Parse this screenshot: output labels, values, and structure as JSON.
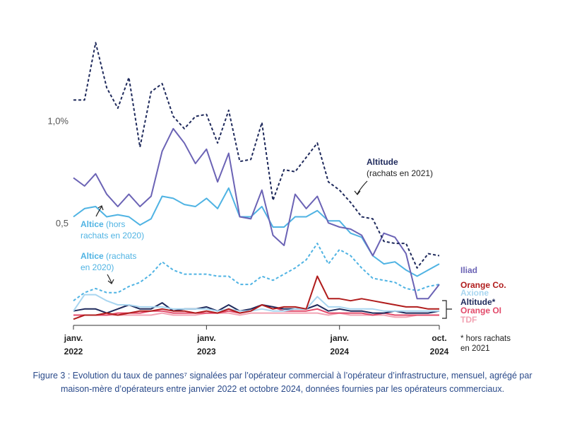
{
  "caption": "Figure 3 : Evolution du taux de pannes⁷ signalées par l’opérateur commercial à l’opérateur d’infrastructure, mensuel, agrégé par maison-mère d’opérateurs entre janvier 2022 et octobre 2024, données fournies par les opérateurs commerciaux.",
  "chart_data": {
    "type": "line",
    "x_start": "2022-01",
    "x_end": "2024-10",
    "x_ticks": [
      {
        "month": "2022-01",
        "line1": "janv.",
        "line2": "2022"
      },
      {
        "month": "2023-01",
        "line1": "janv.",
        "line2": "2023"
      },
      {
        "month": "2024-01",
        "line1": "janv.",
        "line2": "2024"
      },
      {
        "month": "2024-10",
        "line1": "oct.",
        "line2": "2024"
      }
    ],
    "y_ticks": [
      {
        "value": 1.0,
        "label": "1,0%"
      },
      {
        "value": 0.5,
        "label": "0,5"
      }
    ],
    "ylim": [
      0,
      1.45
    ],
    "series": [
      {
        "name": "Altitude (rachats en 2021)",
        "color": "#1f2a5c",
        "dash": true,
        "values": [
          1.1,
          1.1,
          1.38,
          1.16,
          1.06,
          1.21,
          0.87,
          1.14,
          1.18,
          1.02,
          0.96,
          1.02,
          1.03,
          0.89,
          1.05,
          0.8,
          0.81,
          0.99,
          0.61,
          0.76,
          0.75,
          0.82,
          0.89,
          0.7,
          0.66,
          0.6,
          0.53,
          0.52,
          0.41,
          0.4,
          0.4,
          0.28,
          0.35,
          0.34
        ]
      },
      {
        "name": "Iliad",
        "color": "#6b63b5",
        "dash": false,
        "values": [
          0.72,
          0.68,
          0.74,
          0.64,
          0.58,
          0.64,
          0.58,
          0.63,
          0.85,
          0.96,
          0.89,
          0.79,
          0.86,
          0.7,
          0.84,
          0.53,
          0.52,
          0.66,
          0.44,
          0.39,
          0.64,
          0.57,
          0.63,
          0.5,
          0.48,
          0.47,
          0.44,
          0.34,
          0.45,
          0.43,
          0.35,
          0.13,
          0.13,
          0.2
        ]
      },
      {
        "name": "Altice (hors rachats en 2020)",
        "color": "#4fb3e3",
        "dash": false,
        "values": [
          0.53,
          0.57,
          0.58,
          0.53,
          0.54,
          0.53,
          0.49,
          0.52,
          0.63,
          0.62,
          0.59,
          0.58,
          0.62,
          0.57,
          0.67,
          0.53,
          0.53,
          0.58,
          0.48,
          0.48,
          0.53,
          0.53,
          0.56,
          0.51,
          0.51,
          0.45,
          0.43,
          0.34,
          0.3,
          0.31,
          0.27,
          0.24,
          0.27,
          0.3
        ]
      },
      {
        "name": "Altice (rachats en 2020)",
        "color": "#4fb3e3",
        "dash": true,
        "values": [
          0.12,
          0.16,
          0.18,
          0.16,
          0.16,
          0.19,
          0.21,
          0.25,
          0.31,
          0.27,
          0.25,
          0.25,
          0.25,
          0.24,
          0.24,
          0.2,
          0.2,
          0.24,
          0.22,
          0.25,
          0.28,
          0.32,
          0.4,
          0.3,
          0.37,
          0.34,
          0.28,
          0.23,
          0.22,
          0.21,
          0.18,
          0.17,
          0.19,
          0.2
        ]
      },
      {
        "name": "Orange Co.",
        "color": "#b01c1c",
        "dash": false,
        "values": [
          0.03,
          0.05,
          0.05,
          0.06,
          0.05,
          0.06,
          0.07,
          0.07,
          0.08,
          0.07,
          0.07,
          0.06,
          0.07,
          0.06,
          0.08,
          0.06,
          0.07,
          0.1,
          0.08,
          0.09,
          0.09,
          0.08,
          0.24,
          0.13,
          0.13,
          0.12,
          0.13,
          0.12,
          0.11,
          0.1,
          0.09,
          0.09,
          0.08,
          0.08
        ]
      },
      {
        "name": "Axione",
        "color": "#a9d6f0",
        "dash": false,
        "values": [
          0.07,
          0.15,
          0.15,
          0.12,
          0.1,
          0.1,
          0.09,
          0.09,
          0.09,
          0.08,
          0.08,
          0.08,
          0.08,
          0.07,
          0.08,
          0.07,
          0.07,
          0.08,
          0.07,
          0.07,
          0.08,
          0.08,
          0.14,
          0.09,
          0.09,
          0.08,
          0.08,
          0.08,
          0.07,
          0.07,
          0.07,
          0.07,
          0.07,
          0.07
        ]
      },
      {
        "name": "Altitude*",
        "color": "#1f2a5c",
        "dash": false,
        "values": [
          0.07,
          0.08,
          0.08,
          0.06,
          0.08,
          0.1,
          0.08,
          0.08,
          0.11,
          0.07,
          0.08,
          0.08,
          0.09,
          0.07,
          0.1,
          0.07,
          0.08,
          0.1,
          0.09,
          0.08,
          0.08,
          0.08,
          0.1,
          0.07,
          0.08,
          0.07,
          0.07,
          0.06,
          0.06,
          0.07,
          0.06,
          0.06,
          0.06,
          0.07
        ]
      },
      {
        "name": "Orange OI",
        "color": "#e24a6a",
        "dash": false,
        "values": [
          0.05,
          0.05,
          0.05,
          0.05,
          0.06,
          0.06,
          0.06,
          0.07,
          0.07,
          0.06,
          0.06,
          0.06,
          0.06,
          0.06,
          0.07,
          0.06,
          0.07,
          0.1,
          0.09,
          0.07,
          0.07,
          0.07,
          0.08,
          0.06,
          0.06,
          0.06,
          0.06,
          0.05,
          0.06,
          0.05,
          0.05,
          0.05,
          0.05,
          0.05
        ]
      },
      {
        "name": "TDF",
        "color": "#f2a3b3",
        "dash": false,
        "values": [
          0.05,
          0.05,
          0.05,
          0.05,
          0.05,
          0.05,
          0.05,
          0.05,
          0.06,
          0.05,
          0.05,
          0.05,
          0.06,
          0.06,
          0.06,
          0.05,
          0.06,
          0.06,
          0.06,
          0.06,
          0.06,
          0.06,
          0.06,
          0.05,
          0.06,
          0.05,
          0.05,
          0.05,
          0.05,
          0.04,
          0.04,
          0.05,
          0.05,
          0.05
        ]
      }
    ],
    "annotations": [
      {
        "id": "altitude-rachats",
        "line1": "Altitude",
        "line2": "(rachats en 2021)",
        "color": "#1f2a5c"
      },
      {
        "id": "altice-hors",
        "line1a": "Altice",
        "line1b": " (hors",
        "line2": "rachats en 2020)",
        "color": "#4fb3e3"
      },
      {
        "id": "altice-rachats",
        "line1a": "Altice",
        "line1b": " (rachats",
        "line2": "en 2020)",
        "color": "#4fb3e3"
      }
    ],
    "legend": [
      {
        "label": "Iliad",
        "color": "#6b63b5"
      },
      {
        "label": "Orange Co.",
        "color": "#b01c1c"
      },
      {
        "label": "Axione",
        "color": "#a9d6f0"
      },
      {
        "label": "Altitude*",
        "color": "#1f2a5c"
      },
      {
        "label": "Orange OI",
        "color": "#e24a6a"
      },
      {
        "label": "TDF",
        "color": "#f2a3b3"
      }
    ],
    "footnote_line1": "* hors rachats",
    "footnote_line2": "en 2021",
    "grid": false
  }
}
